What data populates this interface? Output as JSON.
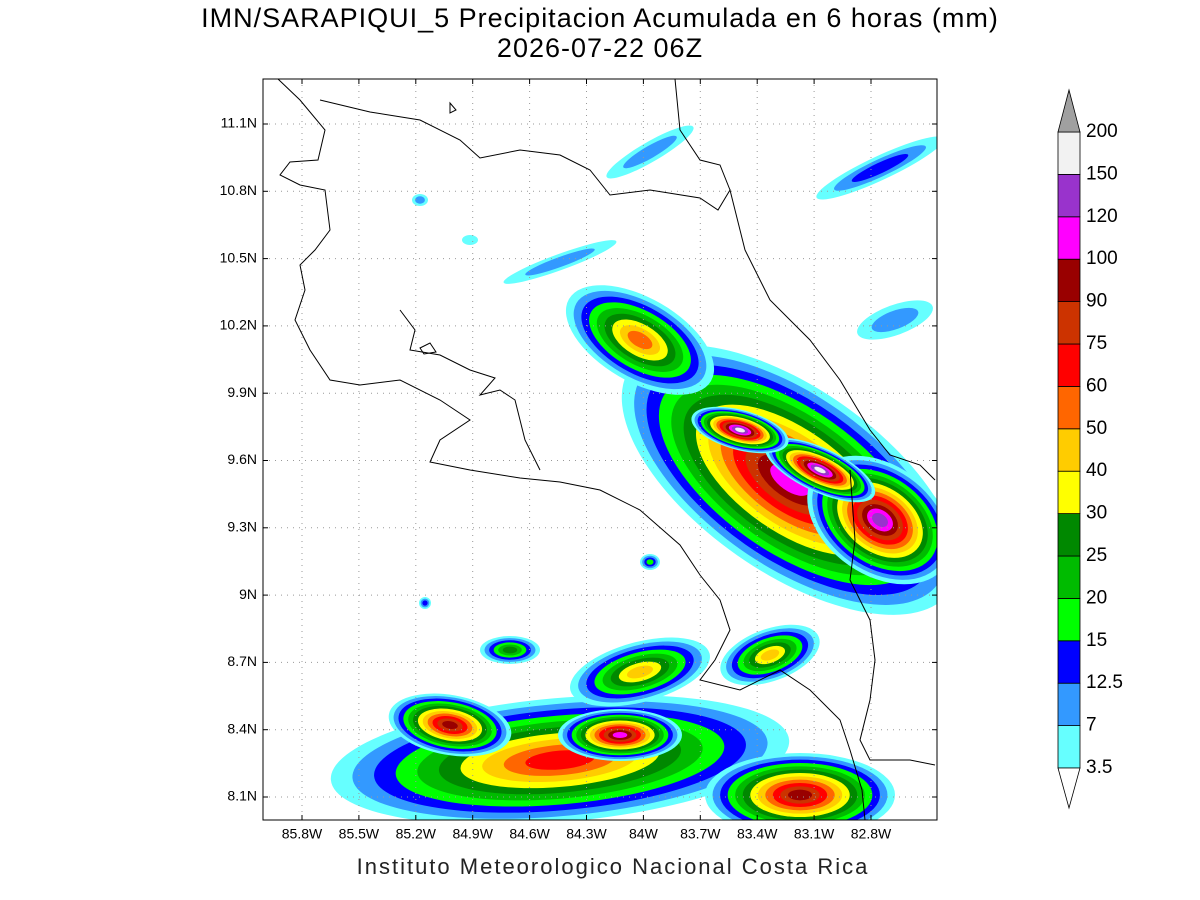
{
  "title": "IMN/SARAPIQUI_5 Precipitacion Acumulada en 6 horas (mm)",
  "subtitle": "2026-07-22 06Z",
  "lat_ticks": [
    "11.1N",
    "10.8N",
    "10.5N",
    "10.2N",
    "9.9N",
    "9.6N",
    "9.3N",
    "9N",
    "8.7N",
    "8.4N",
    "8.1N"
  ],
  "lon_ticks": [
    "85.8W",
    "85.5W",
    "85.2W",
    "84.9W",
    "84.6W",
    "84.3W",
    "84W",
    "83.7W",
    "83.4W",
    "83.1W",
    "82.8W"
  ],
  "colorbar": {
    "levels": [
      3.5,
      7,
      12.5,
      15,
      20,
      25,
      30,
      40,
      50,
      60,
      75,
      90,
      100,
      120,
      150,
      200
    ],
    "colors": [
      "#ffffff",
      "#66ffff",
      "#3399ff",
      "#0000ff",
      "#00ff00",
      "#00bb00",
      "#008800",
      "#ffff00",
      "#ffcc00",
      "#ff6600",
      "#ff0000",
      "#cc3300",
      "#990000",
      "#ff00ff",
      "#9933cc",
      "#f2f2f2",
      "#a0a0a0"
    ]
  },
  "footer": "Instituto Meteorologico Nacional Costa Rica"
}
